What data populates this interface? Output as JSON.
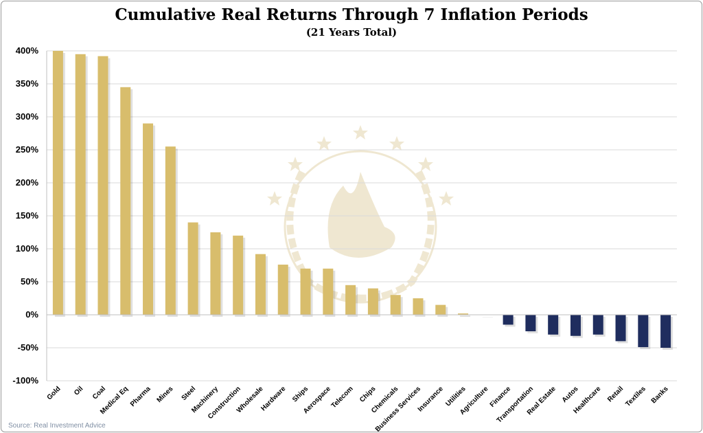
{
  "title": "Cumulative Real Returns Through 7 Inflation Periods",
  "subtitle": "(21 Years Total)",
  "source": "Source: Real Investment Advice",
  "colors": {
    "positive": "#d8bd6c",
    "negative": "#1f2d5e",
    "grid": "#d9d9d9",
    "watermark": "#c9ab5e"
  },
  "chart_data": {
    "type": "bar",
    "title": "Cumulative Real Returns Through 7 Inflation Periods",
    "subtitle": "(21 Years Total)",
    "categories": [
      "Gold",
      "Oil",
      "Coal",
      "Medical Eq",
      "Pharma",
      "Mines",
      "Steel",
      "Machinery",
      "Construction",
      "Wholesale",
      "Hardware",
      "Ships",
      "Aerospace",
      "Telecom",
      "Chips",
      "Chemicals",
      "Business Services",
      "Insurance",
      "Utilities",
      "Agriculture",
      "Finance",
      "Transportation",
      "Real Estate",
      "Autos",
      "Healthcare",
      "Retail",
      "Textiles",
      "Banks"
    ],
    "values": [
      400,
      395,
      392,
      345,
      290,
      255,
      140,
      125,
      120,
      92,
      76,
      70,
      70,
      45,
      40,
      30,
      25,
      15,
      2,
      0,
      -15,
      -25,
      -30,
      -32,
      -30,
      -40,
      -49,
      -50
    ],
    "ylim": [
      -100,
      400
    ],
    "yticks": [
      -100,
      -50,
      0,
      50,
      100,
      150,
      200,
      250,
      300,
      350,
      400
    ],
    "ytick_labels": [
      "-100%",
      "-50%",
      "0%",
      "50%",
      "100%",
      "150%",
      "200%",
      "250%",
      "300%",
      "350%",
      "400%"
    ],
    "xlabel": "",
    "ylabel": "",
    "grid": true,
    "legend": "none"
  }
}
